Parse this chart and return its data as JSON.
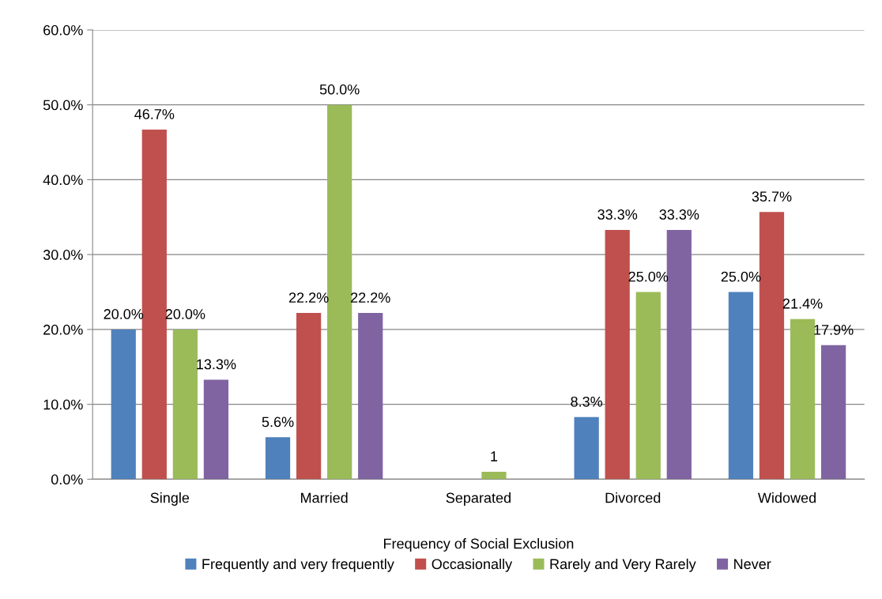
{
  "chart_data": {
    "type": "bar",
    "categories": [
      "Single",
      "Married",
      "Separated",
      "Divorced",
      "Widowed"
    ],
    "legend_title": "Frequency of Social Exclusion",
    "series": [
      {
        "name": "Frequently and very frequently",
        "color": "#4f81bd",
        "values": [
          20.0,
          5.6,
          null,
          8.3,
          25.0
        ],
        "value_labels": [
          "20.0%",
          "5.6%",
          null,
          "8.3%",
          "25.0%"
        ]
      },
      {
        "name": "Occasionally",
        "color": "#c0504d",
        "values": [
          46.7,
          22.2,
          null,
          33.3,
          35.7
        ],
        "value_labels": [
          "46.7%",
          "22.2%",
          null,
          "33.3%",
          "35.7%"
        ]
      },
      {
        "name": "Rarely and Very Rarely",
        "color": "#9bbb59",
        "values": [
          20.0,
          50.0,
          1,
          25.0,
          21.4
        ],
        "value_labels": [
          "20.0%",
          "50.0%",
          "1",
          "25.0%",
          "21.4%"
        ]
      },
      {
        "name": "Never",
        "color": "#8064a2",
        "values": [
          13.3,
          22.2,
          null,
          33.3,
          17.9
        ],
        "value_labels": [
          "13.3%",
          "22.2%",
          null,
          "33.3%",
          "17.9%"
        ]
      }
    ],
    "ylim": [
      0,
      60
    ],
    "yticks": [
      {
        "value": 0,
        "label": "0.0%"
      },
      {
        "value": 10,
        "label": "10.0%"
      },
      {
        "value": 20,
        "label": "20.0%"
      },
      {
        "value": 30,
        "label": "30.0%"
      },
      {
        "value": 40,
        "label": "40.0%"
      },
      {
        "value": 50,
        "label": "50.0%"
      },
      {
        "value": 60,
        "label": "60.0%"
      }
    ],
    "grid": "y",
    "legend": "bottom"
  }
}
